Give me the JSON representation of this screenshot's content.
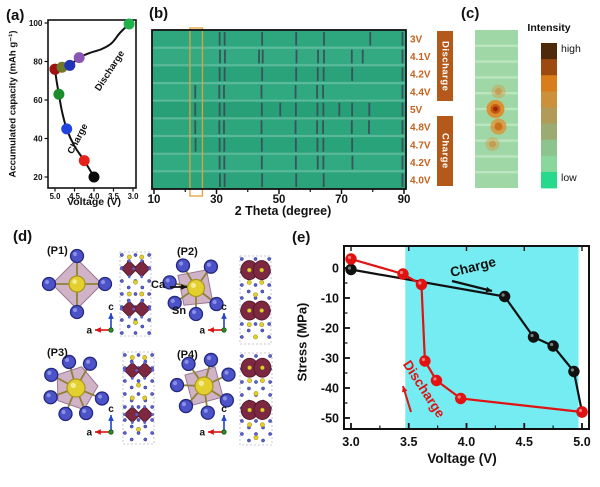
{
  "figure": {
    "bg": "#ffffff",
    "panels": {
      "a": {
        "label": "(a)",
        "ylabel": "Accumulated capacity (mAh g⁻¹)",
        "xlabel": "Voltage (V)",
        "charge_label": "Charge",
        "discharge_label": "Discharge"
      },
      "b": {
        "label": "(b)",
        "xlabel": "2 Theta (degree)",
        "discharge_label": "Discharge",
        "charge_label": "Charge",
        "box_color": "#b4591a",
        "voltage_label_color": "#c4621c"
      },
      "c": {
        "label": "(c)",
        "intensity_label": "Intensity",
        "high_label": "high",
        "low_label": "low"
      },
      "d": {
        "label": "(d)",
        "ca_label": "Ca",
        "sn_label": "Sn",
        "axis_a": "a",
        "axis_c": "c",
        "structures": [
          {
            "label": "(P1)"
          },
          {
            "label": "(P2)"
          },
          {
            "label": "(P3)"
          },
          {
            "label": "(P4)"
          }
        ]
      },
      "e": {
        "label": "(e)",
        "ylabel": "Stress (MPa)",
        "xlabel": "Voltage (V)",
        "charge_label": "Charge",
        "discharge_label": "Discharge"
      }
    }
  },
  "chart_data": [
    {
      "panel": "a",
      "type": "line",
      "xlabel": "Voltage (V)",
      "ylabel": "Accumulated capacity (mAh g-1)",
      "x_reversed": true,
      "x_ticks": [
        "5.0",
        "4.5",
        "4.0",
        "3.5",
        "3.0"
      ],
      "y_ticks": [
        "20",
        "40",
        "60",
        "80",
        "100"
      ],
      "xlim": [
        5.2,
        2.95
      ],
      "ylim": [
        17,
        102
      ],
      "series": [
        {
          "name": "Charge",
          "line_color": "#111111",
          "points": [
            {
              "x": 4.0,
              "y": 20,
              "marker": "#0a0a0a"
            },
            {
              "x": 4.25,
              "y": 28.5,
              "marker": "#e8201a"
            },
            {
              "x": 4.7,
              "y": 45,
              "marker": "#2244dd"
            },
            {
              "x": 4.9,
              "y": 63,
              "marker": "#1d8c2c"
            },
            {
              "x": 5.0,
              "y": 76,
              "marker": "#9e1212"
            }
          ],
          "curve": [
            [
              4.0,
              20
            ],
            [
              4.25,
              28.5
            ],
            [
              4.5,
              36
            ],
            [
              4.7,
              45
            ],
            [
              4.82,
              54
            ],
            [
              4.9,
              63
            ],
            [
              4.96,
              70
            ],
            [
              5.0,
              76
            ]
          ]
        },
        {
          "name": "Discharge",
          "line_color": "#111111",
          "points": [
            {
              "x": 5.0,
              "y": 76,
              "marker": "#9e1212"
            },
            {
              "x": 4.82,
              "y": 77,
              "marker": "#6e7a28"
            },
            {
              "x": 4.62,
              "y": 78,
              "marker": "#2233b8"
            },
            {
              "x": 4.38,
              "y": 82,
              "marker": "#8a55b4"
            },
            {
              "x": 3.1,
              "y": 99.5,
              "marker": "#22b04a"
            }
          ],
          "curve": [
            [
              5.0,
              76
            ],
            [
              4.82,
              77
            ],
            [
              4.62,
              78
            ],
            [
              4.38,
              82
            ],
            [
              4.1,
              84.5
            ],
            [
              3.8,
              86.5
            ],
            [
              3.55,
              89.5
            ],
            [
              3.35,
              94.5
            ],
            [
              3.18,
              98
            ],
            [
              3.1,
              99.5
            ]
          ]
        }
      ]
    },
    {
      "panel": "b",
      "type": "heatmap",
      "xlabel": "2 Theta (degree)",
      "xlim": [
        10,
        90
      ],
      "x_ticks": [
        10,
        30,
        50,
        70,
        90
      ],
      "x_minor_ticks": [
        20,
        40,
        60,
        80
      ],
      "bg_color": "#2ca57d",
      "peak_color": "#3b4a55",
      "highlight_box": {
        "x1": 21.5,
        "x2": 25.5,
        "color": "#e2a23b"
      },
      "rows": [
        {
          "voltage": "3V",
          "group": "Discharge",
          "peaks": [
            31,
            32.6,
            44.6,
            55.5,
            64.4,
            79.2,
            89.5
          ]
        },
        {
          "voltage": "4.1V",
          "group": "Discharge",
          "peaks": [
            31.1,
            32.7,
            43.6,
            44.8,
            55.6,
            62.5,
            64.4,
            73.3,
            76.8,
            89.5
          ]
        },
        {
          "voltage": "4.2V",
          "group": "Discharge",
          "peaks": [
            31,
            32.6,
            44.6,
            55.5,
            62.4,
            64.3,
            73.4,
            89.5
          ]
        },
        {
          "voltage": "4.4V",
          "group": "Discharge",
          "peaks": [
            23.2,
            30.9,
            32.4,
            44.4,
            55.3,
            62.2,
            64.1,
            89.5
          ]
        },
        {
          "voltage": "5V",
          "group": "",
          "peaks": [
            23.2,
            31,
            32.5,
            44.5,
            50.4,
            55.4,
            62.3,
            64.2,
            69.3,
            73.4,
            78.9,
            89.5
          ]
        },
        {
          "voltage": "4.8V",
          "group": "Charge",
          "peaks": [
            23.2,
            30.9,
            32.4,
            44.4,
            55.3,
            62.2,
            64.1,
            73.3,
            78.8,
            89.5
          ]
        },
        {
          "voltage": "4.7V",
          "group": "Charge",
          "peaks": [
            23.3,
            31,
            32.5,
            44.5,
            55.4,
            62.3,
            64.2,
            73.4,
            89.5
          ]
        },
        {
          "voltage": "4.2V",
          "group": "Charge",
          "peaks": [
            31,
            32.5,
            44.5,
            55.4,
            62.4,
            64.2,
            73.5,
            89.5
          ]
        },
        {
          "voltage": "4.0V",
          "group": "Charge",
          "peaks": [
            31.1,
            32.6,
            44.6,
            55.5,
            64.3,
            89.5
          ]
        }
      ]
    },
    {
      "panel": "c",
      "type": "heatmap-strip",
      "legend_title": "Intensity",
      "legend_high": "high",
      "legend_low": "low",
      "strip_color": "#9fd7a6",
      "stripe_color": "#c0e9c4",
      "spots": [
        {
          "row_index": 3,
          "voltage": "4.4V",
          "intensity": "weak"
        },
        {
          "row_index": 4,
          "voltage": "5V",
          "intensity": "high"
        },
        {
          "row_index": 5,
          "voltage": "4.8V",
          "intensity": "medium"
        },
        {
          "row_index": 6,
          "voltage": "4.7V",
          "intensity": "weak"
        }
      ],
      "colorbar_top_to_bottom": [
        "#4f2a0a",
        "#9c4a10",
        "#d97c1a",
        "#cc8f3a",
        "#b29a58",
        "#9bab72",
        "#8cc48e",
        "#8ad79e",
        "#27d98a"
      ]
    },
    {
      "panel": "e",
      "type": "line",
      "xlabel": "Voltage (V)",
      "ylabel": "Stress (MPa)",
      "x_ticks": [
        "3.0",
        "3.5",
        "4.0",
        "4.5",
        "5.0"
      ],
      "y_ticks": [
        "0",
        "-10",
        "-20",
        "-30",
        "-40",
        "-50"
      ],
      "xlim": [
        2.94,
        5.06
      ],
      "ylim": [
        -53.5,
        7.3
      ],
      "shaded_region": {
        "x1": 3.47,
        "x2": 4.97,
        "color": "#74ecf2"
      },
      "series": [
        {
          "name": "Charge",
          "color": "#111111",
          "points": [
            [
              3.0,
              -0.5
            ],
            [
              4.33,
              -9.5
            ],
            [
              4.58,
              -23
            ],
            [
              4.75,
              -26
            ],
            [
              4.93,
              -34.5
            ],
            [
              5.0,
              -48
            ]
          ]
        },
        {
          "name": "Discharge",
          "color": "#e01212",
          "points": [
            [
              5.0,
              -48
            ],
            [
              3.95,
              -43.5
            ],
            [
              3.74,
              -37.5
            ],
            [
              3.64,
              -31
            ],
            [
              3.61,
              -5.5
            ],
            [
              3.45,
              -2
            ],
            [
              3.0,
              3
            ]
          ]
        }
      ]
    }
  ]
}
